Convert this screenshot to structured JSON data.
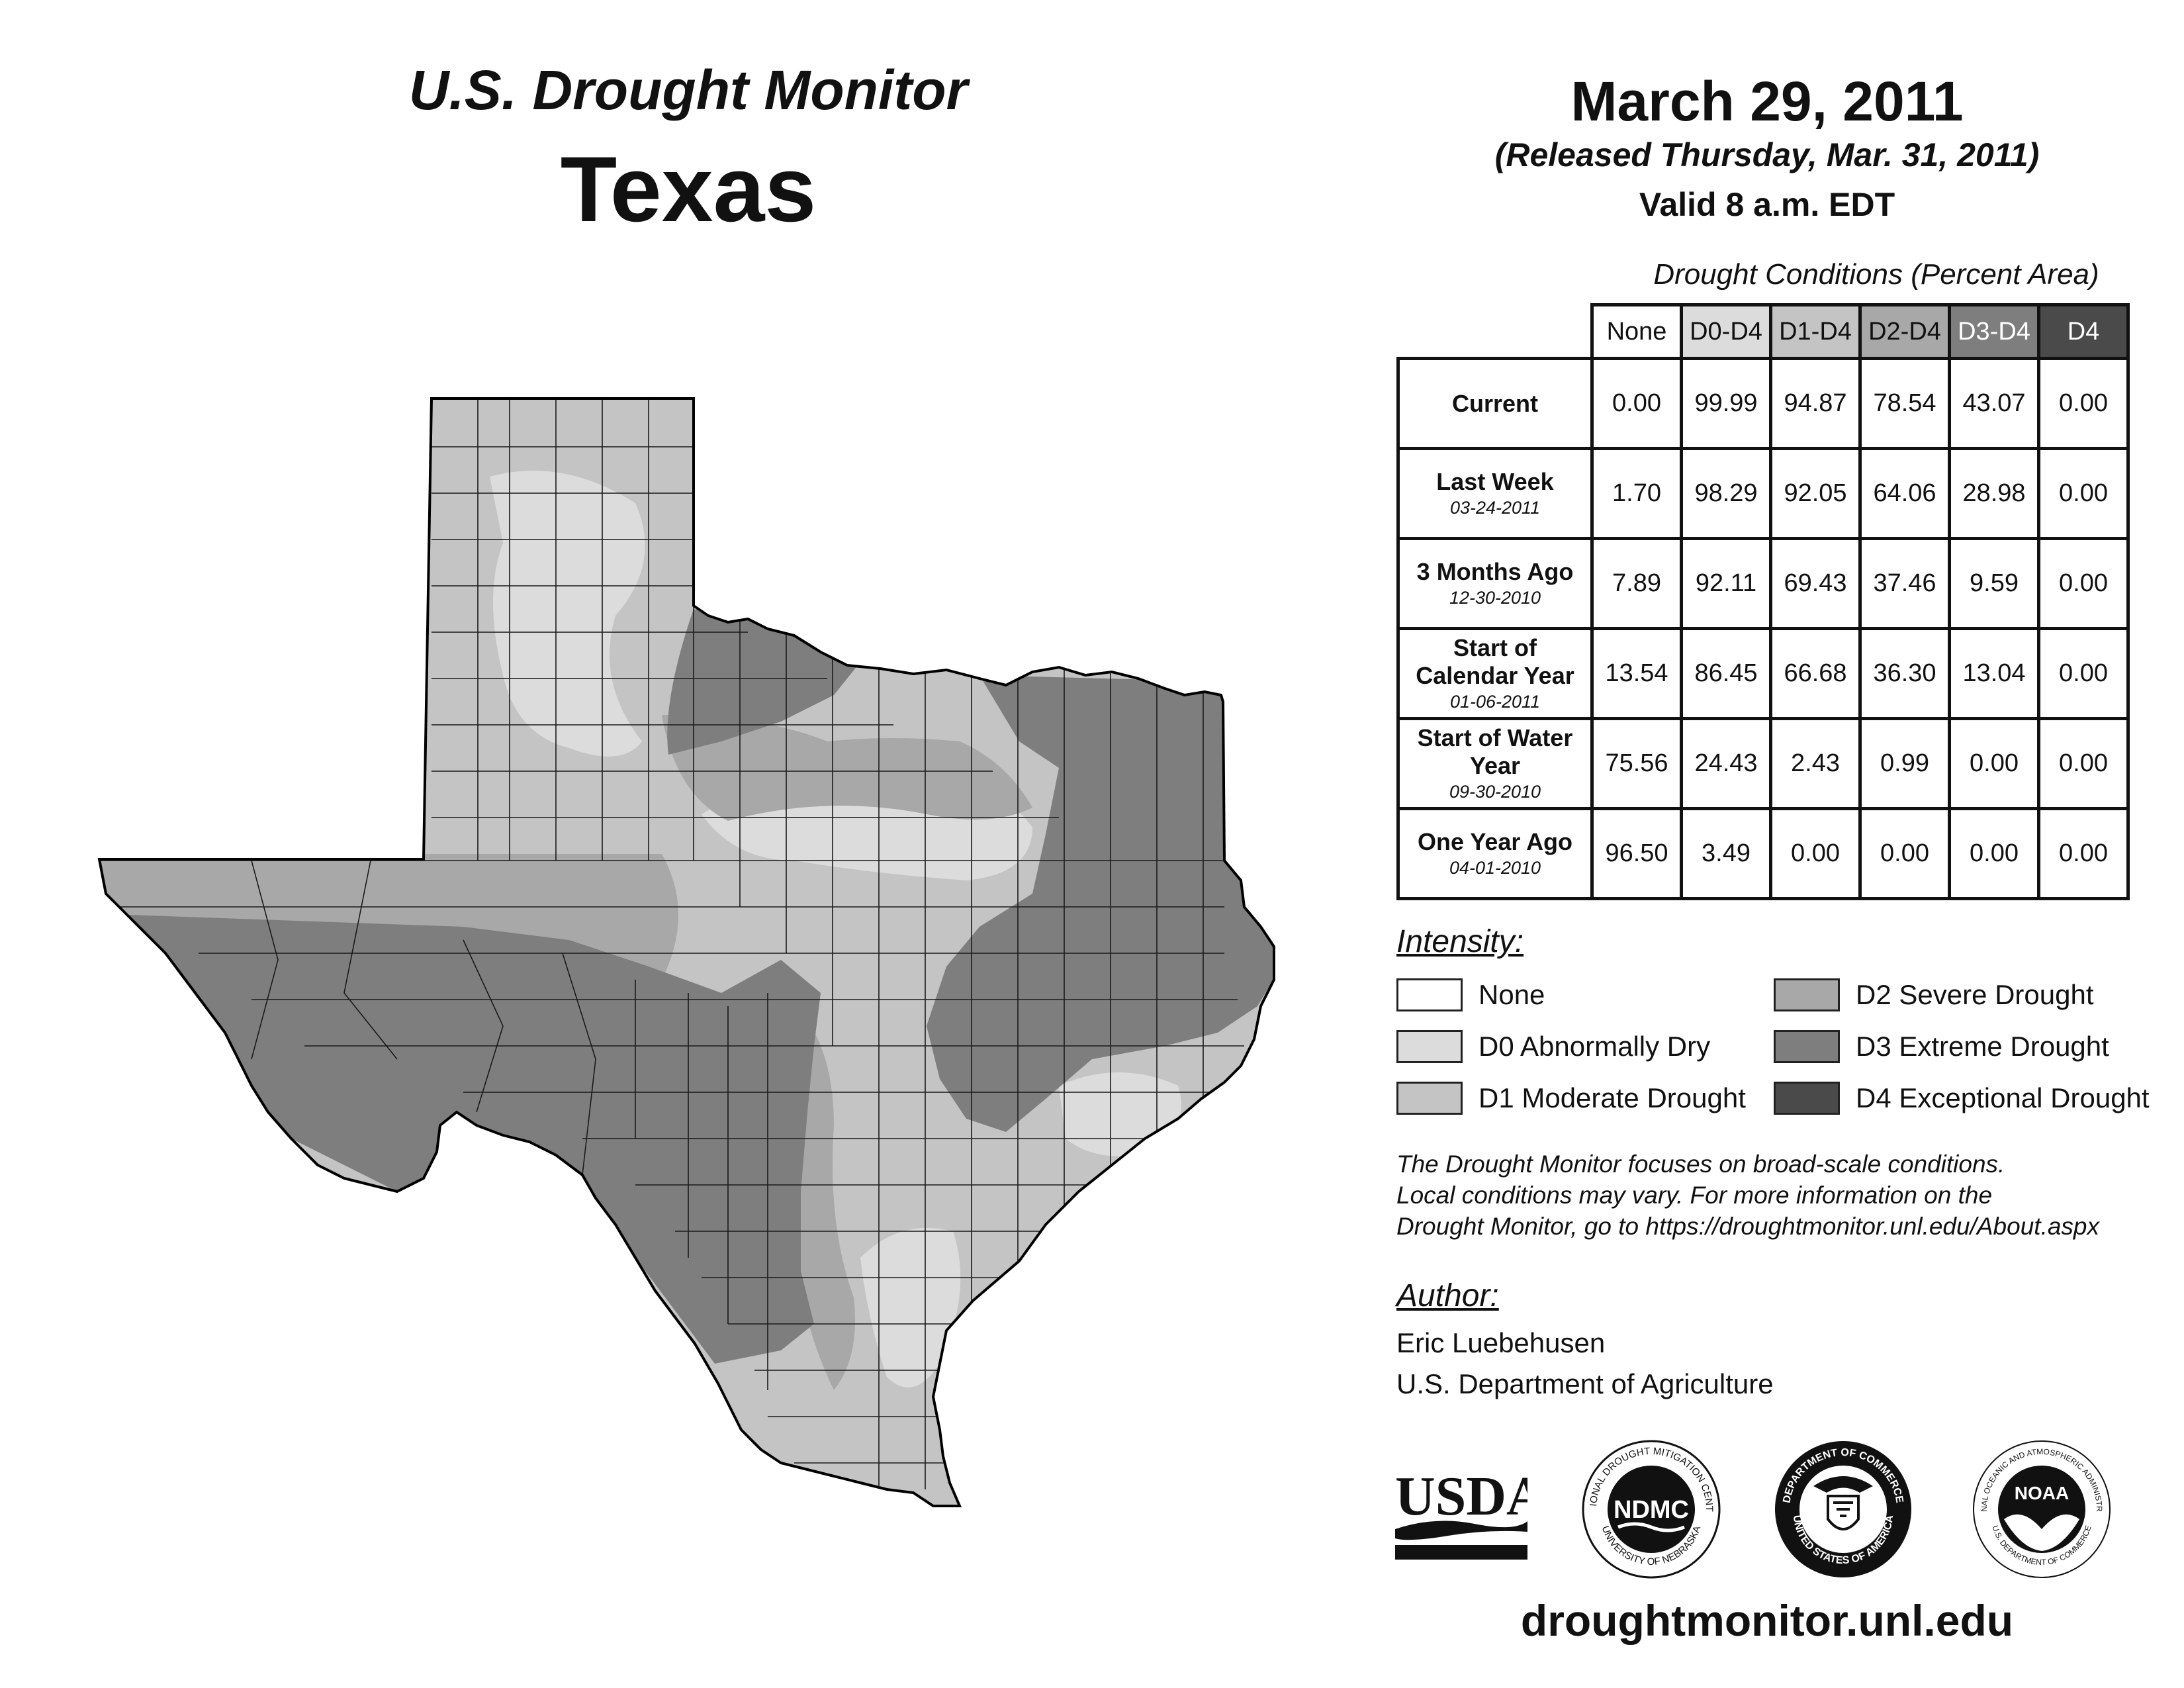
{
  "header": {
    "monitor_title": "U.S. Drought Monitor",
    "state": "Texas",
    "date": "March 29, 2011",
    "released": "(Released Thursday, Mar. 31, 2011)",
    "valid": "Valid 8 a.m. EDT"
  },
  "table": {
    "caption": "Drought Conditions (Percent Area)",
    "columns": [
      "None",
      "D0-D4",
      "D1-D4",
      "D2-D4",
      "D3-D4",
      "D4"
    ],
    "rows": [
      {
        "label": "Current",
        "date": "",
        "values": [
          "0.00",
          "99.99",
          "94.87",
          "78.54",
          "43.07",
          "0.00"
        ]
      },
      {
        "label": "Last Week",
        "date": "03-24-2011",
        "values": [
          "1.70",
          "98.29",
          "92.05",
          "64.06",
          "28.98",
          "0.00"
        ]
      },
      {
        "label": "3 Months Ago",
        "date": "12-30-2010",
        "values": [
          "7.89",
          "92.11",
          "69.43",
          "37.46",
          "9.59",
          "0.00"
        ]
      },
      {
        "label": "Start of Calendar Year",
        "date": "01-06-2011",
        "values": [
          "13.54",
          "86.45",
          "66.68",
          "36.30",
          "13.04",
          "0.00"
        ]
      },
      {
        "label": "Start of Water Year",
        "date": "09-30-2010",
        "values": [
          "75.56",
          "24.43",
          "2.43",
          "0.99",
          "0.00",
          "0.00"
        ]
      },
      {
        "label": "One Year Ago",
        "date": "04-01-2010",
        "values": [
          "96.50",
          "3.49",
          "0.00",
          "0.00",
          "0.00",
          "0.00"
        ]
      }
    ]
  },
  "legend": {
    "title": "Intensity:",
    "items": [
      {
        "label": "None",
        "color": "#ffffff"
      },
      {
        "label": "D0 Abnormally Dry",
        "color": "#dcdcdc"
      },
      {
        "label": "D1 Moderate Drought",
        "color": "#c4c4c4"
      },
      {
        "label": "D2 Severe Drought",
        "color": "#a8a8a8"
      },
      {
        "label": "D3 Extreme Drought",
        "color": "#7e7e7e"
      },
      {
        "label": "D4 Exceptional Drought",
        "color": "#4a4a4a"
      }
    ]
  },
  "note": {
    "line1": "The Drought Monitor focuses on broad-scale conditions.",
    "line2": "Local conditions may vary. For more information on the",
    "line3": "Drought Monitor, go to https://droughtmonitor.unl.edu/About.aspx"
  },
  "author": {
    "title": "Author:",
    "name": "Eric Luebehusen",
    "org": "U.S. Department of Agriculture"
  },
  "logos": {
    "usda": "USDA",
    "ndmc": "NDMC",
    "ndmc_ring_top": "NATIONAL DROUGHT MITIGATION CENTER",
    "ndmc_ring_bottom": "UNIVERSITY OF NEBRASKA",
    "doc_ring_top": "DEPARTMENT OF COMMERCE",
    "doc_ring_bottom": "UNITED STATES OF AMERICA",
    "noaa": "NOAA",
    "noaa_ring_top": "NATIONAL OCEANIC AND ATMOSPHERIC ADMINISTRATION",
    "noaa_ring_bottom": "U.S. DEPARTMENT OF COMMERCE"
  },
  "footer_url": "droughtmonitor.unl.edu",
  "map": {
    "d3_color": "#7e7e7e",
    "d2_color": "#a8a8a8",
    "d1_color": "#c4c4c4",
    "d0_color": "#dcdcdc"
  }
}
